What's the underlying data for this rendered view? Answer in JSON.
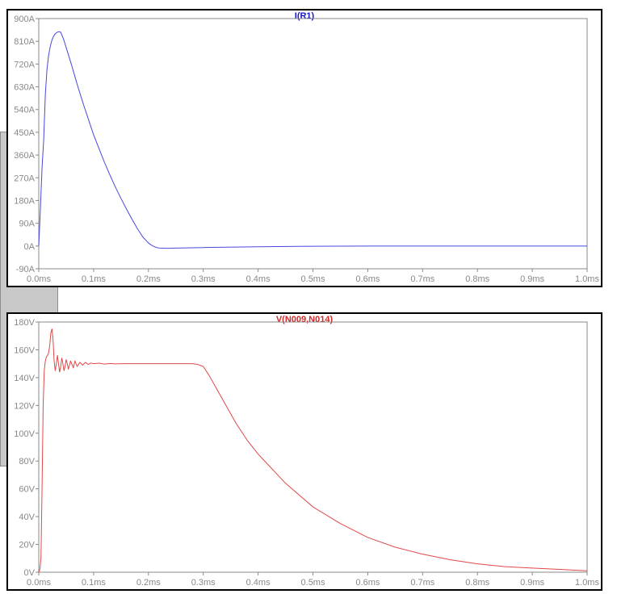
{
  "chart_data": [
    {
      "type": "line",
      "title": "I(R1)",
      "xlabel": "",
      "ylabel": "",
      "xlim": [
        0,
        1.0
      ],
      "ylim": [
        -90,
        900
      ],
      "grid": false,
      "xtick_values": [
        0,
        0.1,
        0.2,
        0.3,
        0.4,
        0.5,
        0.6,
        0.7,
        0.8,
        0.9,
        1.0
      ],
      "xtick_labels": [
        "0.0ms",
        "0.1ms",
        "0.2ms",
        "0.3ms",
        "0.4ms",
        "0.5ms",
        "0.6ms",
        "0.7ms",
        "0.8ms",
        "0.9ms",
        "1.0ms"
      ],
      "ytick_values": [
        -90,
        0,
        90,
        180,
        270,
        360,
        450,
        540,
        630,
        720,
        810,
        900
      ],
      "ytick_labels": [
        "-90A",
        "0A",
        "90A",
        "180A",
        "270A",
        "360A",
        "450A",
        "540A",
        "630A",
        "720A",
        "810A",
        "900A"
      ],
      "series": [
        {
          "color": "#4848e0",
          "x": [
            0,
            0.003,
            0.006,
            0.009,
            0.012,
            0.015,
            0.018,
            0.021,
            0.024,
            0.027,
            0.03,
            0.033,
            0.036,
            0.04,
            0.045,
            0.05,
            0.06,
            0.07,
            0.08,
            0.09,
            0.1,
            0.11,
            0.12,
            0.13,
            0.14,
            0.15,
            0.16,
            0.17,
            0.18,
            0.19,
            0.2,
            0.205,
            0.21,
            0.215,
            0.22,
            0.23,
            0.24,
            0.25,
            0.3,
            0.4,
            0.5,
            0.6,
            0.7,
            0.8,
            0.9,
            1.0
          ],
          "y": [
            0,
            150,
            310,
            420,
            600,
            700,
            755,
            790,
            815,
            830,
            840,
            845,
            848,
            846,
            820,
            785,
            715,
            640,
            570,
            505,
            440,
            385,
            330,
            280,
            232,
            188,
            146,
            106,
            68,
            35,
            12,
            4,
            -2,
            -6,
            -8,
            -9,
            -9,
            -8,
            -6,
            -3,
            -1,
            0,
            0,
            0,
            0,
            0
          ]
        }
      ]
    },
    {
      "type": "line",
      "title": "V(N009,N014)",
      "xlabel": "",
      "ylabel": "",
      "xlim": [
        0,
        1.0
      ],
      "ylim": [
        0,
        180
      ],
      "grid": false,
      "xtick_values": [
        0,
        0.1,
        0.2,
        0.3,
        0.4,
        0.5,
        0.6,
        0.7,
        0.8,
        0.9,
        1.0
      ],
      "xtick_labels": [
        "0.0ms",
        "0.1ms",
        "0.2ms",
        "0.3ms",
        "0.4ms",
        "0.5ms",
        "0.6ms",
        "0.7ms",
        "0.8ms",
        "0.9ms",
        "1.0ms"
      ],
      "ytick_values": [
        0,
        20,
        40,
        60,
        80,
        100,
        120,
        140,
        160,
        180
      ],
      "ytick_labels": [
        "0V",
        "20V",
        "40V",
        "60V",
        "80V",
        "100V",
        "120V",
        "140V",
        "160V",
        "180V"
      ],
      "series": [
        {
          "color": "#e04848",
          "x": [
            0,
            0.002,
            0.004,
            0.006,
            0.008,
            0.01,
            0.012,
            0.014,
            0.016,
            0.018,
            0.02,
            0.022,
            0.024,
            0.026,
            0.028,
            0.03,
            0.032,
            0.034,
            0.036,
            0.038,
            0.04,
            0.042,
            0.044,
            0.046,
            0.048,
            0.05,
            0.052,
            0.054,
            0.056,
            0.058,
            0.06,
            0.063,
            0.066,
            0.07,
            0.075,
            0.08,
            0.085,
            0.09,
            0.095,
            0.1,
            0.11,
            0.12,
            0.13,
            0.14,
            0.15,
            0.17,
            0.2,
            0.25,
            0.28,
            0.29,
            0.3,
            0.31,
            0.32,
            0.34,
            0.36,
            0.38,
            0.4,
            0.45,
            0.5,
            0.55,
            0.6,
            0.65,
            0.7,
            0.75,
            0.8,
            0.85,
            0.9,
            0.95,
            1.0
          ],
          "y": [
            0,
            2,
            10,
            60,
            120,
            145,
            152,
            155,
            156,
            158,
            163,
            172,
            175,
            168,
            152,
            145,
            150,
            156,
            150,
            144,
            148,
            154,
            150,
            145,
            148,
            153,
            150,
            146,
            149,
            152,
            150,
            147,
            152,
            148,
            151,
            149,
            151,
            149.5,
            150.5,
            150,
            150.4,
            149.7,
            150.2,
            149.9,
            150,
            150,
            150,
            150,
            150,
            149.5,
            148,
            142,
            135,
            121,
            107,
            95,
            85,
            64,
            47,
            35,
            25,
            18,
            13,
            9,
            6,
            4,
            3,
            2,
            1
          ]
        }
      ]
    }
  ]
}
